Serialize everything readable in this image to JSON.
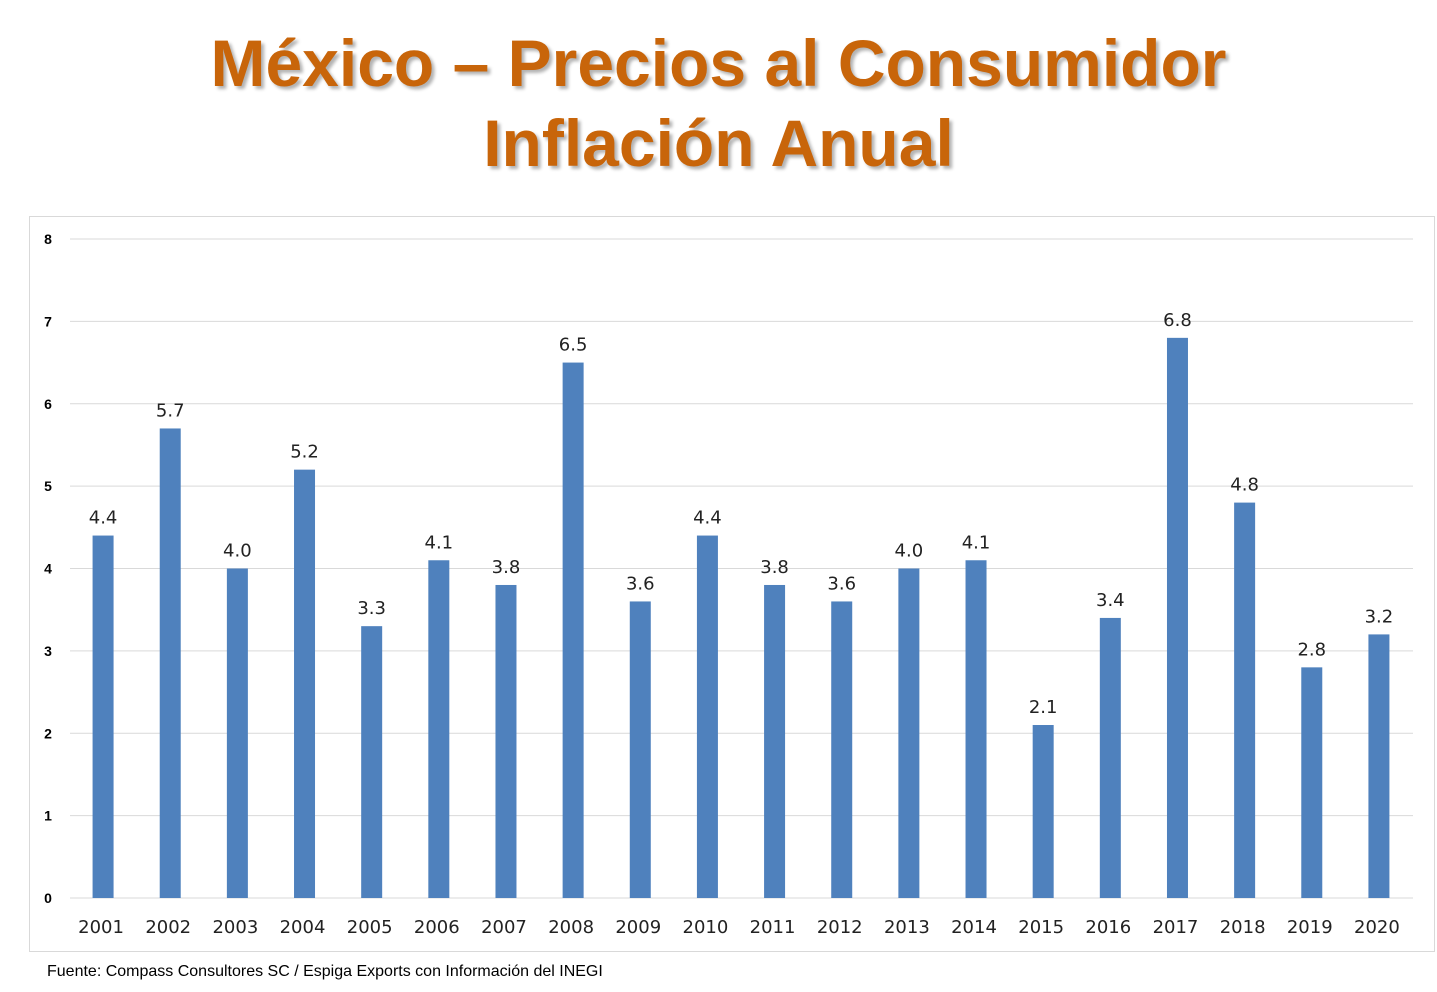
{
  "title_line1": "México – Precios al Consumidor",
  "title_line2": "Inflación Anual",
  "source": "Fuente: Compass Consultores SC / Espiga Exports con Información del INEGI",
  "chart_data": {
    "type": "bar",
    "title": "México – Precios al Consumidor Inflación Anual",
    "xlabel": "",
    "ylabel": "",
    "ylim": [
      0,
      8
    ],
    "yticks": [
      0,
      1,
      2,
      3,
      4,
      5,
      6,
      7,
      8
    ],
    "grid": true,
    "bar_color": "#4F81BD",
    "title_color": "#C8650A",
    "categories": [
      "2001",
      "2002",
      "2003",
      "2004",
      "2005",
      "2006",
      "2007",
      "2008",
      "2009",
      "2010",
      "2011",
      "2012",
      "2013",
      "2014",
      "2015",
      "2016",
      "2017",
      "2018",
      "2019",
      "2020"
    ],
    "values": [
      4.4,
      5.7,
      4.0,
      5.2,
      3.3,
      4.1,
      3.8,
      6.5,
      3.6,
      4.4,
      3.8,
      3.6,
      4.0,
      4.1,
      2.1,
      3.4,
      6.8,
      4.8,
      2.8,
      3.2
    ],
    "data_labels": [
      "4.4",
      "5.7",
      "4.0",
      "5.2",
      "3.3",
      "4.1",
      "3.8",
      "6.5",
      "3.6",
      "4.4",
      "3.8",
      "3.6",
      "4.0",
      "4.1",
      "2.1",
      "3.4",
      "6.8",
      "4.8",
      "2.8",
      "3.2"
    ]
  }
}
